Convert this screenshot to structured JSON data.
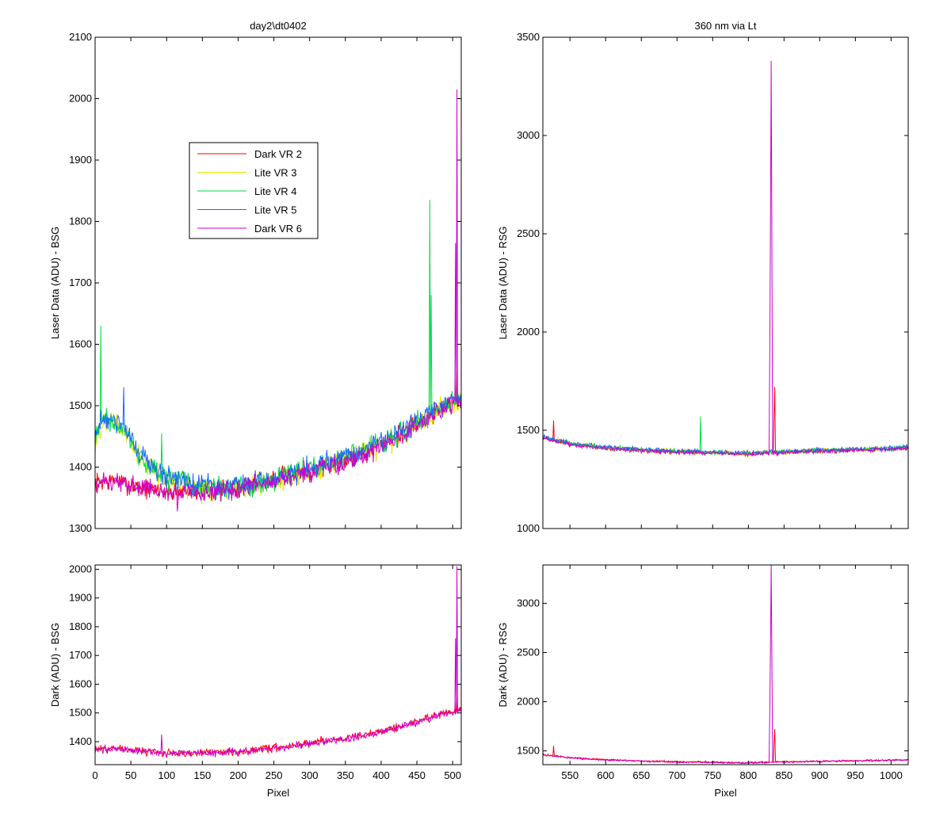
{
  "chart_data": [
    {
      "type": "line",
      "title": "day2\\dt0402",
      "xlabel": "",
      "ylabel": "Laser Data (ADU) - BSG",
      "xlim": [
        0,
        512
      ],
      "ylim": [
        1300,
        2100
      ],
      "xticks": [
        0,
        50,
        100,
        150,
        200,
        250,
        300,
        350,
        400,
        450,
        500
      ],
      "yticks": [
        1300,
        1400,
        1500,
        1600,
        1700,
        1800,
        1900,
        2000,
        2100
      ],
      "show_xticklabels": false,
      "legend": {
        "position": "upper-left-inside",
        "entries": [
          "Dark VR 2",
          "Lite VR 3",
          "Lite VR 4",
          "Lite VR 5",
          "Dark VR 6"
        ]
      },
      "series": [
        {
          "name": "Dark VR 2",
          "color": "#ff0000",
          "points": [
            [
              0,
              1375
            ],
            [
              30,
              1378
            ],
            [
              60,
              1368
            ],
            [
              100,
              1360
            ],
            [
              150,
              1362
            ],
            [
              200,
              1365
            ],
            [
              250,
              1380
            ],
            [
              300,
              1395
            ],
            [
              350,
              1412
            ],
            [
              400,
              1435
            ],
            [
              450,
              1470
            ],
            [
              490,
              1500
            ],
            [
              512,
              1510
            ]
          ],
          "noise": 12,
          "spikes": [
            [
              505,
              1555
            ]
          ]
        },
        {
          "name": "Lite VR 3",
          "color": "#e6e600",
          "points": [
            [
              0,
              1430
            ],
            [
              10,
              1470
            ],
            [
              20,
              1475
            ],
            [
              30,
              1470
            ],
            [
              40,
              1455
            ],
            [
              60,
              1420
            ],
            [
              80,
              1395
            ],
            [
              100,
              1380
            ],
            [
              150,
              1365
            ],
            [
              200,
              1365
            ],
            [
              250,
              1375
            ],
            [
              300,
              1395
            ],
            [
              350,
              1412
            ],
            [
              400,
              1435
            ],
            [
              450,
              1470
            ],
            [
              490,
              1500
            ],
            [
              512,
              1510
            ]
          ],
          "noise": 14,
          "spikes": []
        },
        {
          "name": "Lite VR 4",
          "color": "#00dd44",
          "points": [
            [
              0,
              1440
            ],
            [
              10,
              1480
            ],
            [
              20,
              1478
            ],
            [
              30,
              1470
            ],
            [
              40,
              1458
            ],
            [
              60,
              1422
            ],
            [
              80,
              1398
            ],
            [
              100,
              1383
            ],
            [
              150,
              1368
            ],
            [
              200,
              1368
            ],
            [
              250,
              1378
            ],
            [
              300,
              1398
            ],
            [
              350,
              1415
            ],
            [
              400,
              1438
            ],
            [
              450,
              1472
            ],
            [
              490,
              1502
            ],
            [
              512,
              1512
            ]
          ],
          "noise": 14,
          "spikes": [
            [
              8,
              1630
            ],
            [
              93,
              1455
            ],
            [
              468,
              1835
            ],
            [
              470,
              1680
            ]
          ]
        },
        {
          "name": "Lite VR 5",
          "color": "#1a66ff",
          "points": [
            [
              0,
              1445
            ],
            [
              10,
              1482
            ],
            [
              20,
              1480
            ],
            [
              30,
              1475
            ],
            [
              40,
              1462
            ],
            [
              60,
              1425
            ],
            [
              80,
              1400
            ],
            [
              100,
              1385
            ],
            [
              150,
              1370
            ],
            [
              200,
              1370
            ],
            [
              250,
              1380
            ],
            [
              300,
              1400
            ],
            [
              350,
              1418
            ],
            [
              400,
              1440
            ],
            [
              450,
              1475
            ],
            [
              490,
              1504
            ],
            [
              512,
              1514
            ]
          ],
          "noise": 14,
          "spikes": [
            [
              40,
              1530
            ]
          ]
        },
        {
          "name": "Dark VR 6",
          "color": "#cc00cc",
          "points": [
            [
              0,
              1372
            ],
            [
              30,
              1375
            ],
            [
              60,
              1366
            ],
            [
              100,
              1358
            ],
            [
              150,
              1360
            ],
            [
              200,
              1363
            ],
            [
              250,
              1378
            ],
            [
              300,
              1393
            ],
            [
              350,
              1410
            ],
            [
              400,
              1433
            ],
            [
              450,
              1468
            ],
            [
              490,
              1498
            ],
            [
              512,
              1508
            ]
          ],
          "noise": 12,
          "spikes": [
            [
              506,
              2015
            ],
            [
              504,
              1765
            ],
            [
              115,
              1328
            ]
          ]
        }
      ]
    },
    {
      "type": "line",
      "title": "360 nm via Lt",
      "xlabel": "",
      "ylabel": "Laser Data (ADU) - RSG",
      "xlim": [
        512,
        1024
      ],
      "ylim": [
        1000,
        3500
      ],
      "xticks": [
        550,
        600,
        650,
        700,
        750,
        800,
        850,
        900,
        950,
        1000
      ],
      "yticks": [
        1000,
        1500,
        2000,
        2500,
        3000,
        3500
      ],
      "show_xticklabels": false,
      "series": [
        {
          "name": "Dark VR 2",
          "color": "#ff0000",
          "points": [
            [
              512,
              1462
            ],
            [
              550,
              1430
            ],
            [
              600,
              1410
            ],
            [
              650,
              1398
            ],
            [
              700,
              1390
            ],
            [
              750,
              1385
            ],
            [
              800,
              1380
            ],
            [
              850,
              1388
            ],
            [
              900,
              1395
            ],
            [
              950,
              1400
            ],
            [
              1000,
              1405
            ],
            [
              1024,
              1410
            ]
          ],
          "noise": 8,
          "spikes": [
            [
              527,
              1550
            ],
            [
              837,
              1720
            ],
            [
              836,
              1580
            ]
          ]
        },
        {
          "name": "Lite VR 3",
          "color": "#e6e600",
          "points": [
            [
              512,
              1465
            ],
            [
              550,
              1432
            ],
            [
              600,
              1412
            ],
            [
              650,
              1400
            ],
            [
              700,
              1392
            ],
            [
              750,
              1387
            ],
            [
              800,
              1382
            ],
            [
              850,
              1390
            ],
            [
              900,
              1397
            ],
            [
              950,
              1402
            ],
            [
              1000,
              1407
            ],
            [
              1024,
              1412
            ]
          ],
          "noise": 9,
          "spikes": []
        },
        {
          "name": "Lite VR 4",
          "color": "#00dd44",
          "points": [
            [
              512,
              1466
            ],
            [
              550,
              1433
            ],
            [
              600,
              1413
            ],
            [
              650,
              1401
            ],
            [
              700,
              1393
            ],
            [
              750,
              1388
            ],
            [
              800,
              1383
            ],
            [
              850,
              1391
            ],
            [
              900,
              1398
            ],
            [
              950,
              1403
            ],
            [
              1000,
              1408
            ],
            [
              1024,
              1413
            ]
          ],
          "noise": 9,
          "spikes": [
            [
              733,
              1570
            ]
          ]
        },
        {
          "name": "Lite VR 5",
          "color": "#1a66ff",
          "points": [
            [
              512,
              1468
            ],
            [
              550,
              1434
            ],
            [
              600,
              1414
            ],
            [
              650,
              1402
            ],
            [
              700,
              1394
            ],
            [
              750,
              1389
            ],
            [
              800,
              1384
            ],
            [
              850,
              1392
            ],
            [
              900,
              1399
            ],
            [
              950,
              1404
            ],
            [
              1000,
              1409
            ],
            [
              1024,
              1414
            ]
          ],
          "noise": 9,
          "spikes": []
        },
        {
          "name": "Dark VR 6",
          "color": "#cc00cc",
          "points": [
            [
              512,
              1460
            ],
            [
              550,
              1428
            ],
            [
              600,
              1408
            ],
            [
              650,
              1396
            ],
            [
              700,
              1388
            ],
            [
              750,
              1383
            ],
            [
              800,
              1378
            ],
            [
              850,
              1386
            ],
            [
              900,
              1393
            ],
            [
              950,
              1398
            ],
            [
              1000,
              1403
            ],
            [
              1024,
              1408
            ]
          ],
          "noise": 8,
          "spikes": [
            [
              832,
              3380
            ],
            [
              831,
              2570
            ],
            [
              830,
              1890
            ],
            [
              833,
              2400
            ]
          ]
        }
      ]
    },
    {
      "type": "line",
      "title": "",
      "xlabel": "Pixel",
      "ylabel": "Dark (ADU) - BSG",
      "xlim": [
        0,
        512
      ],
      "ylim": [
        1320,
        2015
      ],
      "xticks": [
        0,
        50,
        100,
        150,
        200,
        250,
        300,
        350,
        400,
        450,
        500
      ],
      "yticks": [
        1400,
        1500,
        1600,
        1700,
        1800,
        1900,
        2000
      ],
      "show_xticklabels": true,
      "series": [
        {
          "name": "Dark VR 2",
          "color": "#ff0000",
          "points": [
            [
              0,
              1375
            ],
            [
              30,
              1378
            ],
            [
              60,
              1368
            ],
            [
              100,
              1360
            ],
            [
              150,
              1362
            ],
            [
              200,
              1365
            ],
            [
              250,
              1380
            ],
            [
              300,
              1395
            ],
            [
              350,
              1412
            ],
            [
              400,
              1435
            ],
            [
              450,
              1470
            ],
            [
              490,
              1500
            ],
            [
              512,
              1510
            ]
          ],
          "noise": 10,
          "spikes": [
            [
              505,
              1555
            ]
          ]
        },
        {
          "name": "Dark VR 6",
          "color": "#cc00cc",
          "points": [
            [
              0,
              1372
            ],
            [
              30,
              1375
            ],
            [
              60,
              1366
            ],
            [
              100,
              1358
            ],
            [
              150,
              1360
            ],
            [
              200,
              1363
            ],
            [
              250,
              1378
            ],
            [
              300,
              1393
            ],
            [
              350,
              1410
            ],
            [
              400,
              1433
            ],
            [
              450,
              1468
            ],
            [
              490,
              1498
            ],
            [
              512,
              1508
            ]
          ],
          "noise": 10,
          "spikes": [
            [
              506,
              2010
            ],
            [
              504,
              1760
            ],
            [
              93,
              1425
            ]
          ]
        }
      ]
    },
    {
      "type": "line",
      "title": "",
      "xlabel": "Pixel",
      "ylabel": "Dark (ADU) - RSG",
      "xlim": [
        512,
        1024
      ],
      "ylim": [
        1360,
        3390
      ],
      "xticks": [
        550,
        600,
        650,
        700,
        750,
        800,
        850,
        900,
        950,
        1000
      ],
      "yticks": [
        1500,
        2000,
        2500,
        3000
      ],
      "show_xticklabels": true,
      "series": [
        {
          "name": "Dark VR 2",
          "color": "#ff0000",
          "points": [
            [
              512,
              1462
            ],
            [
              550,
              1430
            ],
            [
              600,
              1410
            ],
            [
              650,
              1398
            ],
            [
              700,
              1390
            ],
            [
              750,
              1385
            ],
            [
              800,
              1380
            ],
            [
              850,
              1388
            ],
            [
              900,
              1395
            ],
            [
              950,
              1400
            ],
            [
              1000,
              1405
            ],
            [
              1024,
              1410
            ]
          ],
          "noise": 7,
          "spikes": [
            [
              527,
              1550
            ],
            [
              837,
              1720
            ],
            [
              836,
              1580
            ]
          ]
        },
        {
          "name": "Dark VR 6",
          "color": "#cc00cc",
          "points": [
            [
              512,
              1460
            ],
            [
              550,
              1428
            ],
            [
              600,
              1408
            ],
            [
              650,
              1396
            ],
            [
              700,
              1388
            ],
            [
              750,
              1383
            ],
            [
              800,
              1378
            ],
            [
              850,
              1386
            ],
            [
              900,
              1393
            ],
            [
              950,
              1398
            ],
            [
              1000,
              1403
            ],
            [
              1024,
              1408
            ]
          ],
          "noise": 7,
          "spikes": [
            [
              832,
              3390
            ],
            [
              831,
              2570
            ],
            [
              830,
              1890
            ],
            [
              833,
              2400
            ]
          ]
        }
      ]
    }
  ]
}
